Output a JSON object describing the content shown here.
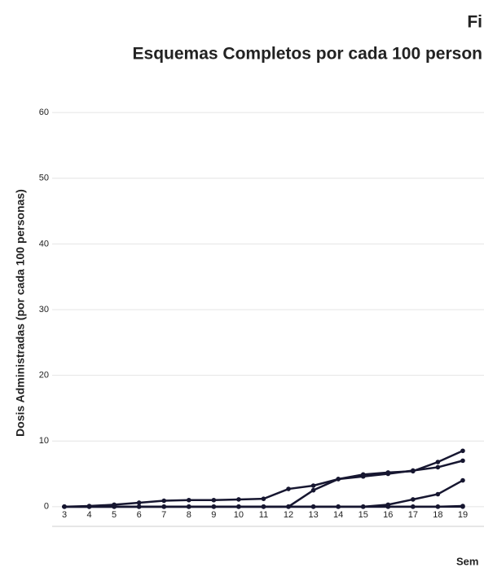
{
  "chart_data": {
    "type": "line",
    "title": "Fi",
    "subtitle": "Esquemas Completos por cada 100 person",
    "y_label": "Dosis Administradas (por cada 100 personas)",
    "x_label": "Sem",
    "categories": [
      "3",
      "4",
      "5",
      "6",
      "7",
      "8",
      "9",
      "10",
      "11",
      "12",
      "13",
      "14",
      "15",
      "16",
      "17",
      "18",
      "19"
    ],
    "ylim": [
      -3,
      62
    ],
    "yticks": [
      0,
      10,
      20,
      30,
      40,
      50,
      60
    ],
    "grid": true,
    "series": [
      {
        "color": "#161630",
        "values": [
          0,
          0.1,
          0.3,
          0.6,
          0.9,
          1.0,
          1.0,
          1.1,
          1.2,
          2.7,
          3.2,
          4.2,
          4.6,
          5.0,
          5.5,
          6.0,
          7.0
        ]
      },
      {
        "color": "#161630",
        "values": [
          0,
          0,
          0,
          0,
          0,
          0,
          0,
          0,
          0,
          0,
          2.5,
          4.2,
          4.9,
          5.2,
          5.4,
          6.8,
          8.5
        ]
      },
      {
        "color": "#161630",
        "values": [
          0,
          0,
          0,
          0,
          0,
          0,
          0,
          0,
          0,
          0,
          0,
          0,
          0,
          0.3,
          1.1,
          1.9,
          4.0
        ]
      },
      {
        "color": "#161630",
        "values": [
          0,
          0,
          0,
          0,
          0,
          0,
          0,
          0,
          0,
          0,
          0,
          0,
          0,
          0,
          0,
          0,
          0.1
        ]
      },
      {
        "color": "#161630",
        "values": [
          0,
          0,
          0,
          0,
          0,
          0,
          0,
          0,
          0,
          0,
          0,
          0,
          0,
          0,
          0,
          0,
          0
        ]
      }
    ]
  }
}
